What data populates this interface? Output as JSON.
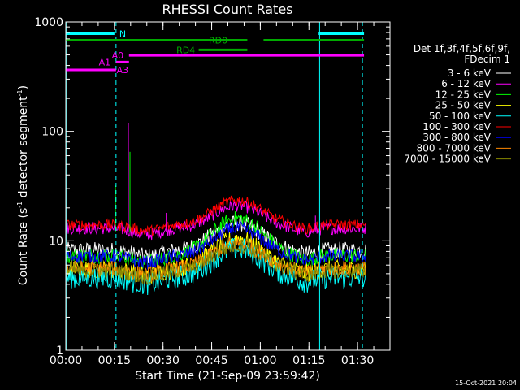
{
  "chart_data": {
    "type": "line",
    "title": "RHESSI Count Rates",
    "xlabel": "Start Time (21-Sep-09 23:59:42)",
    "ylabel_main": "Count Rate (s",
    "ylabel_exp1": "-1",
    "ylabel_mid": " detector segment",
    "ylabel_exp2": "-1",
    "ylabel_close": ")",
    "y_scale": "log",
    "ylim": [
      1,
      1000
    ],
    "xlim_minutes": [
      0,
      100
    ],
    "y_ticks": [
      {
        "value": 1,
        "label": "1"
      },
      {
        "value": 10,
        "label": "10"
      },
      {
        "value": 100,
        "label": "100"
      },
      {
        "value": 1000,
        "label": "1000"
      }
    ],
    "x_ticks": [
      {
        "minutes": 0,
        "label": "00:00"
      },
      {
        "minutes": 15,
        "label": "00:15"
      },
      {
        "minutes": 30,
        "label": "00:30"
      },
      {
        "minutes": 45,
        "label": "00:45"
      },
      {
        "minutes": 60,
        "label": "01:00"
      },
      {
        "minutes": 75,
        "label": "01:15"
      },
      {
        "minutes": 90,
        "label": "01:30"
      }
    ],
    "legend_header": [
      "Det 1f,3f,4f,5f,6f,9f,",
      "FDecim 1"
    ],
    "series": [
      {
        "name": "3 - 6 keV",
        "color": "#ffffff",
        "base": 8.2,
        "peak": 14.5,
        "noise": 0.055
      },
      {
        "name": "6 - 12 keV",
        "color": "#ff00ff",
        "base": 13.0,
        "peak": 21.0,
        "noise": 0.04
      },
      {
        "name": "12 - 25 keV",
        "color": "#00ff00",
        "base": 7.3,
        "peak": 16.0,
        "noise": 0.05
      },
      {
        "name": "25 - 50 keV",
        "color": "#ffff00",
        "base": 5.5,
        "peak": 10.5,
        "noise": 0.06
      },
      {
        "name": "50 - 100 keV",
        "color": "#00ffff",
        "base": 4.6,
        "peak": 8.5,
        "noise": 0.075
      },
      {
        "name": "100 - 300 keV",
        "color": "#ff0000",
        "base": 14.0,
        "peak": 23.5,
        "noise": 0.035
      },
      {
        "name": "300 - 800 keV",
        "color": "#0000ff",
        "base": 7.2,
        "peak": 13.0,
        "noise": 0.045
      },
      {
        "name": "800 - 7000 keV",
        "color": "#ff8800",
        "base": 5.6,
        "peak": 9.5,
        "noise": 0.05
      },
      {
        "name": "7000 - 15000 keV",
        "color": "#888800",
        "base": 5.3,
        "peak": 9.0,
        "noise": 0.05
      }
    ],
    "spikes": [
      {
        "minutes": 15.3,
        "value": 32,
        "color": "#00ff00"
      },
      {
        "minutes": 19.3,
        "value": 120,
        "color": "#ff00ff"
      },
      {
        "minutes": 19.8,
        "value": 65,
        "color": "#00ff00"
      },
      {
        "minutes": 31.0,
        "value": 18,
        "color": "#ff00ff"
      },
      {
        "minutes": 77.0,
        "value": 17,
        "color": "#ff00ff"
      }
    ],
    "flag_bars": [
      {
        "label": "N",
        "color": "#00ffff",
        "value": 780,
        "segments": [
          [
            0,
            15
          ],
          [
            78,
            92
          ]
        ],
        "label_at": 16.5,
        "label_pos": "right"
      },
      {
        "label": "RD0",
        "color": "#00aa00",
        "value": 680,
        "segments": [
          [
            0,
            56
          ],
          [
            61,
            92
          ]
        ],
        "label_at": 47,
        "label_pos": "center"
      },
      {
        "label": "RD4",
        "color": "#00aa00",
        "value": 555,
        "segments": [
          [
            41,
            56
          ]
        ],
        "label_at": 37,
        "label_pos": "center"
      },
      {
        "label": "A0",
        "color": "#ff00ff",
        "value": 495,
        "segments": [
          [
            19.5,
            92
          ]
        ],
        "label_at": 16.0,
        "label_pos": "center"
      },
      {
        "label": "A1",
        "color": "#ff00ff",
        "value": 430,
        "segments": [
          [
            15.5,
            19.5
          ]
        ],
        "label_at": 12.0,
        "label_pos": "center"
      },
      {
        "label": "A3",
        "color": "#ff00ff",
        "value": 365,
        "segments": [
          [
            0,
            15.5
          ]
        ],
        "label_at": 17.5,
        "label_pos": "center"
      }
    ],
    "vlines": [
      {
        "minutes": 0.1,
        "color": "#00ffff",
        "style": "solid"
      },
      {
        "minutes": 15.5,
        "color": "#00ffff",
        "style": "dashed"
      },
      {
        "minutes": 78.3,
        "color": "#00ffff",
        "style": "solid"
      },
      {
        "minutes": 91.5,
        "color": "#00ffff",
        "style": "dashed"
      }
    ],
    "timestamp": "15-Oct-2021 20:04",
    "grid": false,
    "legend_position": "right"
  }
}
